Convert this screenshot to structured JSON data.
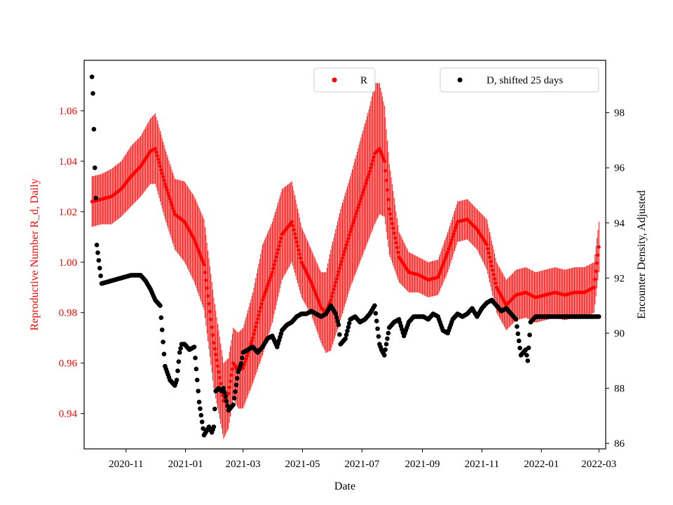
{
  "chart_data": {
    "type": "scatter",
    "xlabel": "Date",
    "ylabel_left": "Reproductive Number R_d, Daily",
    "ylabel_right": "Encounter Density, Adjusted",
    "ylim_left": [
      0.926,
      1.08
    ],
    "ylim_right": [
      85.8,
      99.9
    ],
    "xlim_days": [
      -43,
      492
    ],
    "x_ticks": [
      {
        "label": "2020-11",
        "day": 0
      },
      {
        "label": "2021-01",
        "day": 61
      },
      {
        "label": "2021-03",
        "day": 120
      },
      {
        "label": "2021-05",
        "day": 181
      },
      {
        "label": "2021-07",
        "day": 242
      },
      {
        "label": "2021-09",
        "day": 304
      },
      {
        "label": "2021-11",
        "day": 365
      },
      {
        "label": "2022-01",
        "day": 426
      },
      {
        "label": "2022-03",
        "day": 485
      }
    ],
    "y_ticks_left": [
      "0.94",
      "0.96",
      "0.98",
      "1.00",
      "1.02",
      "1.04",
      "1.06"
    ],
    "y_ticks_right": [
      "86",
      "88",
      "90",
      "92",
      "94",
      "96",
      "98"
    ],
    "colors": {
      "R": "#ff0000",
      "D": "#000000",
      "left_axis_text": "#ff0000"
    },
    "legend_R": {
      "label": "R",
      "location": "upper-center"
    },
    "legend_D": {
      "label": "D, shifted 25 days",
      "location": "upper-right"
    },
    "series_R": {
      "name": "R",
      "axis": "left",
      "x_days": [
        -35,
        -25,
        -15,
        -5,
        5,
        15,
        25,
        30,
        40,
        50,
        60,
        70,
        80,
        90,
        100,
        105,
        110,
        115,
        120,
        130,
        140,
        150,
        160,
        170,
        180,
        190,
        200,
        205,
        210,
        220,
        230,
        240,
        250,
        255,
        260,
        265,
        270,
        280,
        290,
        300,
        310,
        320,
        330,
        340,
        350,
        360,
        370,
        380,
        390,
        400,
        410,
        420,
        430,
        440,
        450,
        460,
        470,
        480,
        485
      ],
      "values": [
        1.024,
        1.025,
        1.026,
        1.029,
        1.034,
        1.038,
        1.044,
        1.045,
        1.031,
        1.019,
        1.016,
        1.009,
        0.999,
        0.968,
        0.945,
        0.948,
        0.96,
        0.957,
        0.958,
        0.97,
        0.985,
        0.996,
        1.011,
        1.016,
        1.0,
        0.992,
        0.982,
        0.98,
        0.985,
        0.999,
        1.012,
        1.024,
        1.036,
        1.043,
        1.045,
        1.04,
        1.021,
        1.002,
        0.996,
        0.995,
        0.993,
        0.994,
        1.004,
        1.016,
        1.017,
        1.013,
        1.007,
        0.99,
        0.983,
        0.987,
        0.988,
        0.986,
        0.987,
        0.988,
        0.987,
        0.988,
        0.988,
        0.99,
        1.006
      ],
      "error": [
        0.01,
        0.01,
        0.011,
        0.011,
        0.012,
        0.012,
        0.013,
        0.014,
        0.014,
        0.014,
        0.016,
        0.017,
        0.018,
        0.018,
        0.015,
        0.014,
        0.014,
        0.015,
        0.016,
        0.018,
        0.022,
        0.02,
        0.018,
        0.016,
        0.014,
        0.013,
        0.014,
        0.016,
        0.02,
        0.022,
        0.022,
        0.024,
        0.026,
        0.028,
        0.026,
        0.022,
        0.018,
        0.01,
        0.008,
        0.007,
        0.007,
        0.007,
        0.008,
        0.008,
        0.008,
        0.008,
        0.01,
        0.01,
        0.01,
        0.01,
        0.01,
        0.01,
        0.01,
        0.01,
        0.01,
        0.01,
        0.01,
        0.01,
        0.01
      ]
    },
    "series_D": {
      "name": "D, shifted 25 days",
      "axis": "right",
      "x_days": [
        -35,
        -34,
        -33,
        -32,
        -31,
        -30,
        -25,
        -15,
        -5,
        5,
        10,
        15,
        20,
        25,
        30,
        35,
        40,
        45,
        50,
        52,
        55,
        57,
        60,
        65,
        70,
        75,
        80,
        85,
        88,
        90,
        92,
        95,
        98,
        100,
        102,
        105,
        110,
        115,
        118,
        120,
        125,
        130,
        135,
        140,
        145,
        150,
        155,
        160,
        165,
        170,
        175,
        180,
        185,
        190,
        195,
        200,
        205,
        210,
        215,
        218,
        220,
        225,
        230,
        235,
        240,
        245,
        250,
        255,
        260,
        262,
        265,
        270,
        275,
        280,
        285,
        290,
        295,
        300,
        305,
        310,
        315,
        320,
        325,
        330,
        335,
        340,
        345,
        350,
        355,
        360,
        365,
        370,
        375,
        380,
        385,
        390,
        395,
        400,
        405,
        410,
        412,
        415,
        420,
        425,
        430,
        440,
        450,
        460,
        470,
        480,
        485
      ],
      "values": [
        99.3,
        98.7,
        97.4,
        96.0,
        94.9,
        93.2,
        91.8,
        91.9,
        92.0,
        92.1,
        92.1,
        92.1,
        91.9,
        91.6,
        91.2,
        91.0,
        88.8,
        88.3,
        88.1,
        88.3,
        89.3,
        89.6,
        89.6,
        89.4,
        89.5,
        87.5,
        86.3,
        86.6,
        86.4,
        86.6,
        87.9,
        88.0,
        87.9,
        88.0,
        87.7,
        87.2,
        87.4,
        88.6,
        88.9,
        89.3,
        89.4,
        89.5,
        89.3,
        89.5,
        89.8,
        89.9,
        89.5,
        90.1,
        90.3,
        90.4,
        90.6,
        90.7,
        90.7,
        90.8,
        90.7,
        90.6,
        90.7,
        91.0,
        90.7,
        90.3,
        89.6,
        89.8,
        90.5,
        90.6,
        90.4,
        90.5,
        90.7,
        91.0,
        89.6,
        89.4,
        89.2,
        90.2,
        90.4,
        90.5,
        89.9,
        90.4,
        90.6,
        90.6,
        90.6,
        90.5,
        90.7,
        90.6,
        90.1,
        90.0,
        90.5,
        90.7,
        90.6,
        90.7,
        90.9,
        90.6,
        90.9,
        91.1,
        91.2,
        91.0,
        90.8,
        90.9,
        90.7,
        90.5,
        89.2,
        89.4,
        89.0,
        90.4,
        90.6,
        90.6,
        90.6,
        90.6,
        90.6,
        90.6,
        90.6,
        90.6,
        90.6
      ]
    }
  }
}
